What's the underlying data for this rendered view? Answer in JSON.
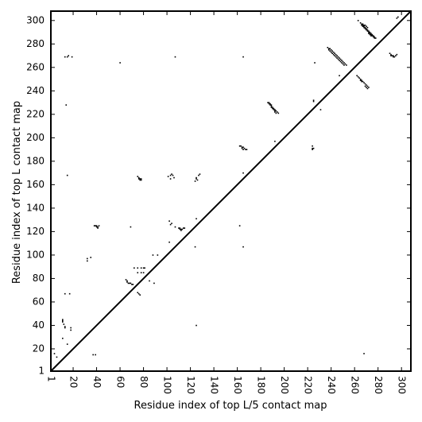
{
  "chart_data": {
    "type": "scatter",
    "xlabel": "Residue index of top L/5 contact map",
    "ylabel": "Residue index of top L contact map",
    "xlim": [
      1,
      308
    ],
    "ylim": [
      1,
      308
    ],
    "x_ticks": [
      1,
      20,
      40,
      60,
      80,
      100,
      120,
      140,
      160,
      180,
      200,
      220,
      240,
      260,
      280,
      300
    ],
    "y_ticks": [
      1,
      20,
      40,
      60,
      80,
      100,
      120,
      140,
      160,
      180,
      200,
      220,
      240,
      260,
      280,
      300
    ],
    "diagonal_line": {
      "from": [
        1,
        1
      ],
      "to": [
        308,
        308
      ]
    },
    "grid": false,
    "series": [
      {
        "values": [
          [
            11,
            45
          ],
          [
            11,
            44
          ],
          [
            11,
            43
          ],
          [
            12,
            41
          ],
          [
            13,
            39
          ],
          [
            13,
            38
          ],
          [
            18,
            38
          ],
          [
            18,
            36
          ],
          [
            15,
            24
          ],
          [
            11,
            29
          ],
          [
            4,
            16
          ],
          [
            6,
            13
          ],
          [
            37,
            15
          ],
          [
            39,
            15
          ],
          [
            13,
            67
          ],
          [
            17,
            67
          ],
          [
            32,
            95
          ],
          [
            32,
            97
          ],
          [
            35,
            98
          ],
          [
            38,
            125
          ],
          [
            39,
            125
          ],
          [
            40,
            125
          ],
          [
            41,
            124
          ],
          [
            41,
            123
          ],
          [
            40,
            124
          ],
          [
            42,
            125
          ],
          [
            65,
            79
          ],
          [
            66,
            78
          ],
          [
            66,
            77
          ],
          [
            67,
            76
          ],
          [
            68,
            76
          ],
          [
            69,
            76
          ],
          [
            70,
            75
          ],
          [
            71,
            75
          ],
          [
            75,
            68
          ],
          [
            76,
            67
          ],
          [
            77,
            66
          ],
          [
            72,
            89
          ],
          [
            75,
            89
          ],
          [
            78,
            89
          ],
          [
            80,
            89
          ],
          [
            81,
            89
          ],
          [
            75,
            85
          ],
          [
            78,
            85
          ],
          [
            80,
            85
          ],
          [
            85,
            78
          ],
          [
            89,
            76
          ],
          [
            88,
            100
          ],
          [
            92,
            100
          ],
          [
            75,
            167
          ],
          [
            76,
            166
          ],
          [
            77,
            165
          ],
          [
            78,
            164
          ],
          [
            76,
            165
          ],
          [
            77,
            164
          ],
          [
            78,
            165
          ],
          [
            101,
            167
          ],
          [
            103,
            168
          ],
          [
            105,
            168
          ],
          [
            106,
            166
          ],
          [
            104,
            169
          ],
          [
            103,
            165
          ],
          [
            102,
            129
          ],
          [
            103,
            126
          ],
          [
            104,
            127
          ],
          [
            102,
            111
          ],
          [
            107,
            124
          ],
          [
            110,
            123
          ],
          [
            111,
            123
          ],
          [
            112,
            122
          ],
          [
            113,
            122
          ],
          [
            114,
            123
          ],
          [
            115,
            123
          ],
          [
            112,
            121
          ],
          [
            111,
            122
          ],
          [
            125,
            165
          ],
          [
            125,
            166
          ],
          [
            126,
            164
          ],
          [
            124,
            163
          ],
          [
            127,
            168
          ],
          [
            128,
            169
          ],
          [
            125,
            40
          ],
          [
            124,
            107
          ],
          [
            125,
            131
          ],
          [
            162,
            193
          ],
          [
            163,
            193
          ],
          [
            164,
            192
          ],
          [
            165,
            192
          ],
          [
            166,
            191
          ],
          [
            167,
            190
          ],
          [
            168,
            190
          ],
          [
            164,
            191
          ],
          [
            165,
            190
          ],
          [
            162,
            125
          ],
          [
            165,
            107
          ],
          [
            165,
            269
          ],
          [
            165,
            170
          ],
          [
            69,
            124
          ],
          [
            60,
            264
          ],
          [
            13,
            269
          ],
          [
            15,
            269
          ],
          [
            16,
            270
          ],
          [
            19,
            269
          ],
          [
            14,
            228
          ],
          [
            15,
            168
          ],
          [
            107,
            269
          ],
          [
            186,
            230
          ],
          [
            187,
            229
          ],
          [
            188,
            228
          ],
          [
            189,
            227
          ],
          [
            190,
            226
          ],
          [
            191,
            225
          ],
          [
            192,
            224
          ],
          [
            193,
            223
          ],
          [
            194,
            222
          ],
          [
            195,
            221
          ],
          [
            187,
            230
          ],
          [
            188,
            229
          ],
          [
            189,
            228
          ],
          [
            190,
            225
          ],
          [
            191,
            224
          ],
          [
            192,
            222
          ],
          [
            193,
            221
          ],
          [
            189,
            226
          ],
          [
            192,
            223
          ],
          [
            192,
            197
          ],
          [
            224,
            190
          ],
          [
            224,
            191
          ],
          [
            224,
            193
          ],
          [
            225,
            191
          ],
          [
            225,
            232
          ],
          [
            225,
            231
          ],
          [
            226,
            264
          ],
          [
            231,
            224
          ],
          [
            237,
            277
          ],
          [
            238,
            276
          ],
          [
            239,
            276
          ],
          [
            240,
            275
          ],
          [
            241,
            274
          ],
          [
            242,
            273
          ],
          [
            243,
            272
          ],
          [
            244,
            271
          ],
          [
            245,
            270
          ],
          [
            246,
            269
          ],
          [
            247,
            268
          ],
          [
            248,
            267
          ],
          [
            249,
            266
          ],
          [
            250,
            265
          ],
          [
            251,
            264
          ],
          [
            252,
            263
          ],
          [
            253,
            262
          ],
          [
            238,
            275
          ],
          [
            239,
            274
          ],
          [
            240,
            273
          ],
          [
            241,
            272
          ],
          [
            242,
            271
          ],
          [
            243,
            270
          ],
          [
            244,
            269
          ],
          [
            245,
            268
          ],
          [
            246,
            267
          ],
          [
            247,
            266
          ],
          [
            248,
            265
          ],
          [
            249,
            264
          ],
          [
            250,
            263
          ],
          [
            251,
            262
          ],
          [
            247,
            253
          ],
          [
            262,
            253
          ],
          [
            263,
            252
          ],
          [
            264,
            251
          ],
          [
            265,
            250
          ],
          [
            266,
            249
          ],
          [
            267,
            248
          ],
          [
            268,
            247
          ],
          [
            269,
            246
          ],
          [
            270,
            245
          ],
          [
            271,
            244
          ],
          [
            272,
            243
          ],
          [
            269,
            244
          ],
          [
            270,
            243
          ],
          [
            271,
            242
          ],
          [
            265,
            249
          ],
          [
            266,
            248
          ],
          [
            263,
            300
          ],
          [
            265,
            298
          ],
          [
            266,
            297
          ],
          [
            267,
            296
          ],
          [
            268,
            295
          ],
          [
            269,
            294
          ],
          [
            270,
            293
          ],
          [
            271,
            292
          ],
          [
            272,
            291
          ],
          [
            273,
            290
          ],
          [
            274,
            289
          ],
          [
            275,
            288
          ],
          [
            276,
            287
          ],
          [
            277,
            286
          ],
          [
            278,
            285
          ],
          [
            266,
            296
          ],
          [
            267,
            295
          ],
          [
            268,
            294
          ],
          [
            269,
            293
          ],
          [
            270,
            292
          ],
          [
            271,
            291
          ],
          [
            272,
            290
          ],
          [
            273,
            289
          ],
          [
            274,
            288
          ],
          [
            275,
            287
          ],
          [
            276,
            286
          ],
          [
            277,
            285
          ],
          [
            267,
            297
          ],
          [
            268,
            296
          ],
          [
            269,
            296
          ],
          [
            270,
            295
          ],
          [
            271,
            294
          ],
          [
            272,
            289
          ],
          [
            273,
            288
          ],
          [
            274,
            287
          ],
          [
            290,
            272
          ],
          [
            291,
            271
          ],
          [
            292,
            270
          ],
          [
            293,
            269
          ],
          [
            294,
            269
          ],
          [
            295,
            270
          ],
          [
            296,
            271
          ],
          [
            291,
            270
          ],
          [
            293,
            270
          ],
          [
            296,
            302
          ],
          [
            297,
            303
          ],
          [
            268,
            16
          ]
        ]
      }
    ]
  }
}
